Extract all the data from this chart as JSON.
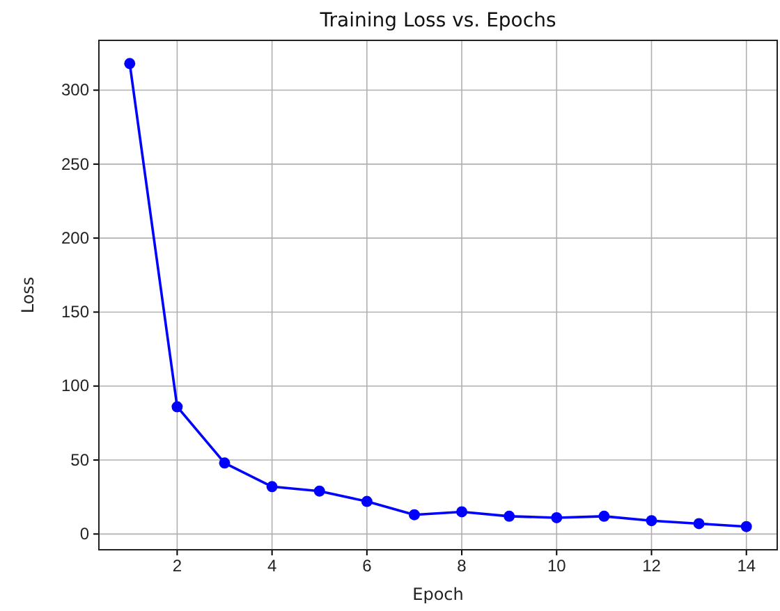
{
  "chart_data": {
    "type": "line",
    "title": "Training Loss vs. Epochs",
    "xlabel": "Epoch",
    "ylabel": "Loss",
    "x": [
      1,
      2,
      3,
      4,
      5,
      6,
      7,
      8,
      9,
      10,
      11,
      12,
      13,
      14
    ],
    "series": [
      {
        "color": "#0000ff",
        "values": [
          318,
          86,
          48,
          32,
          29,
          22,
          13,
          15,
          12,
          11,
          12,
          9,
          7,
          5
        ]
      }
    ],
    "xlim": [
      0.35,
      14.65
    ],
    "xticks": [
      2,
      4,
      6,
      8,
      10,
      12,
      14
    ],
    "ylim": [
      -10.65,
      333.65
    ],
    "yticks": [
      0,
      50,
      100,
      150,
      200,
      250,
      300
    ],
    "grid": true,
    "marker": "circle",
    "line_style": "solid"
  }
}
